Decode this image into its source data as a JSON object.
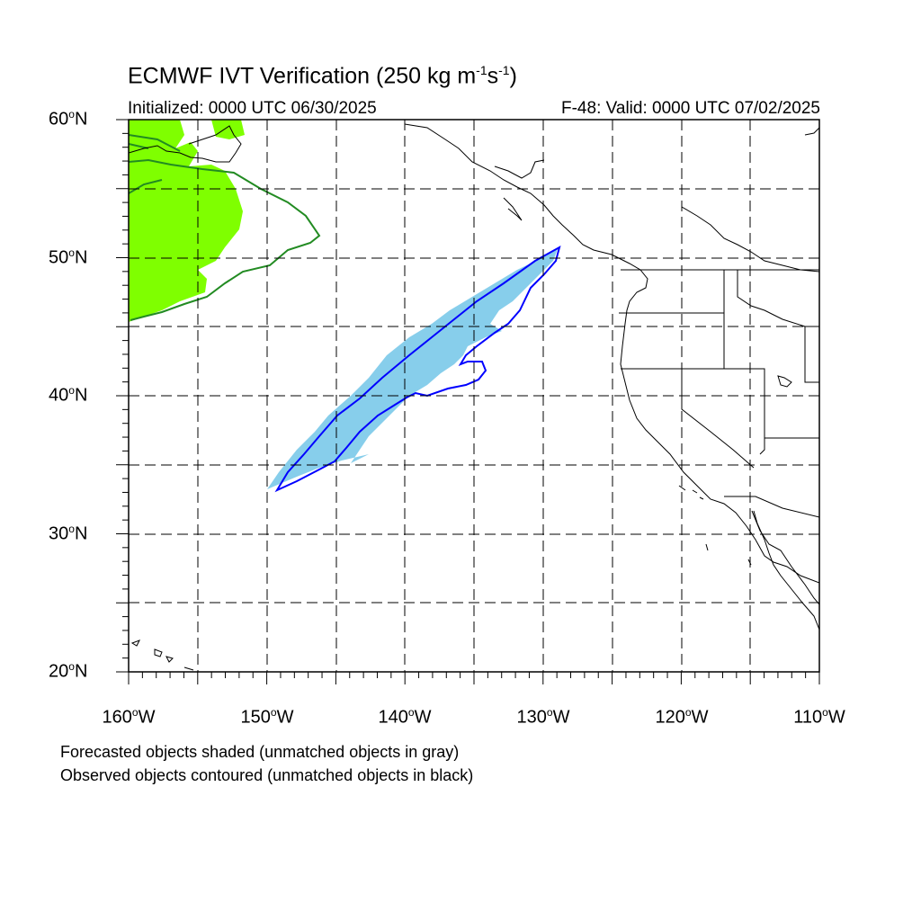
{
  "title": {
    "main": "ECMWF IVT Verification (250 kg m",
    "sup1": "-1",
    "mid": "s",
    "sup2": "-1",
    "end": ")"
  },
  "initialized": "Initialized: 0000 UTC 06/30/2025",
  "valid": "F-48: Valid: 0000 UTC 07/02/2025",
  "lat_labels": [
    {
      "num": "60",
      "deg": "o",
      "dir": "N"
    },
    {
      "num": "50",
      "deg": "o",
      "dir": "N"
    },
    {
      "num": "40",
      "deg": "o",
      "dir": "N"
    },
    {
      "num": "30",
      "deg": "o",
      "dir": "N"
    },
    {
      "num": "20",
      "deg": "o",
      "dir": "N"
    }
  ],
  "lon_labels": [
    {
      "num": "160",
      "deg": "o",
      "dir": "W"
    },
    {
      "num": "150",
      "deg": "o",
      "dir": "W"
    },
    {
      "num": "140",
      "deg": "o",
      "dir": "W"
    },
    {
      "num": "130",
      "deg": "o",
      "dir": "W"
    },
    {
      "num": "120",
      "deg": "o",
      "dir": "W"
    },
    {
      "num": "110",
      "deg": "o",
      "dir": "W"
    }
  ],
  "caption_line1": "Forecasted objects shaded (unmatched objects in gray)",
  "caption_line2": "Observed objects contoured (unmatched objects in black)",
  "colors": {
    "forecast_matched_1": "#7fff00",
    "observed_matched_1": "#228b22",
    "forecast_matched_2": "#87ceeb",
    "observed_matched_2": "#0000ff",
    "coastline": "#000000",
    "grid": "#000000"
  },
  "map_extent": {
    "lon": [
      -160,
      -110
    ],
    "lat": [
      20,
      60
    ]
  },
  "grid_interval_deg": 5
}
